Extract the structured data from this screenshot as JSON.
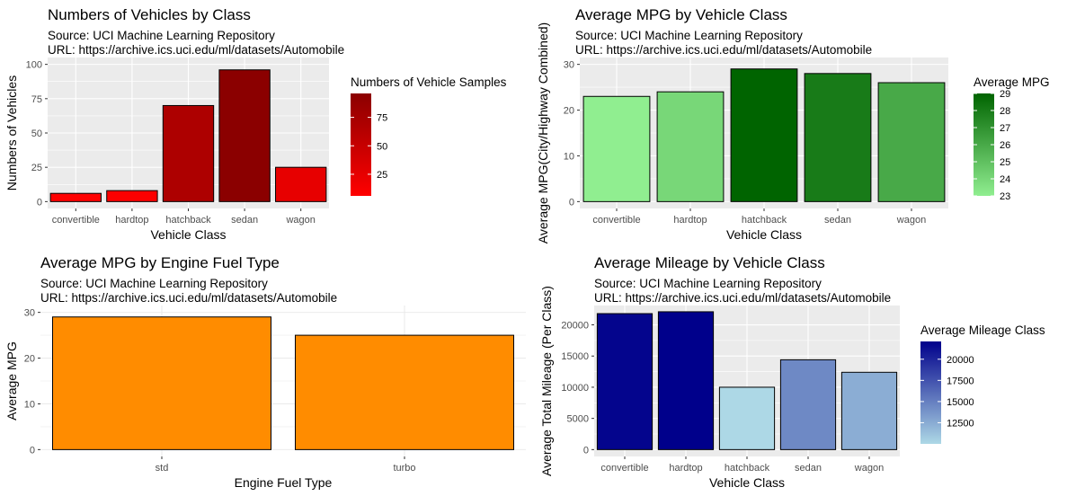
{
  "chart_data": [
    {
      "type": "bar",
      "title": "Numbers of Vehicles by Class",
      "subtitle": [
        "Source: UCI Machine Learning Repository",
        " URL: https://archive.ics.uci.edu/ml/datasets/Automobile"
      ],
      "xlabel": "Vehicle Class",
      "ylabel": "Numbers of Vehicles",
      "categories": [
        "convertible",
        "hardtop",
        "hatchback",
        "sedan",
        "wagon"
      ],
      "values": [
        6,
        8,
        70,
        96,
        25
      ],
      "ylim": [
        0,
        100
      ],
      "yticks": [
        0,
        25,
        50,
        75,
        100
      ],
      "grid": true,
      "legend": {
        "title": "Numbers of Vehicle Samples",
        "position": "right",
        "ticks": [
          25,
          50,
          75
        ],
        "range": [
          6,
          96
        ],
        "colors": [
          "#ff0000",
          "#8b0000"
        ]
      }
    },
    {
      "type": "bar",
      "title": "Average MPG by Vehicle Class",
      "subtitle": [
        "Source: UCI Machine Learning Repository",
        " URL: https://archive.ics.uci.edu/ml/datasets/Automobile"
      ],
      "xlabel": "Vehicle Class",
      "ylabel": "Average MPG(City/Highway Combined)",
      "categories": [
        "convertible",
        "hardtop",
        "hatchback",
        "sedan",
        "wagon"
      ],
      "values": [
        23,
        24,
        29,
        28,
        26
      ],
      "ylim": [
        0,
        30
      ],
      "yticks": [
        0,
        10,
        20,
        30
      ],
      "grid": true,
      "legend": {
        "title": "Average MPG",
        "position": "right",
        "ticks": [
          23,
          24,
          25,
          26,
          27,
          28,
          29
        ],
        "range": [
          23,
          29
        ],
        "colors": [
          "#90ee90",
          "#006400"
        ]
      }
    },
    {
      "type": "bar",
      "title": "Average MPG by Engine Fuel Type",
      "subtitle": [
        "Source: UCI Machine Learning Repository",
        " URL: https://archive.ics.uci.edu/ml/datasets/Automobile"
      ],
      "xlabel": "Engine Fuel Type",
      "ylabel": "Average MPG",
      "categories": [
        "std",
        "turbo"
      ],
      "values": [
        29,
        25
      ],
      "ylim": [
        0,
        30
      ],
      "yticks": [
        0,
        10,
        20,
        30
      ],
      "grid": true,
      "bar_color": "#ff8c00"
    },
    {
      "type": "bar",
      "title": "Average Mileage by Vehicle Class",
      "subtitle": [
        "Source: UCI Machine Learning Repository",
        " URL: https://archive.ics.uci.edu/ml/datasets/Automobile"
      ],
      "xlabel": "Vehicle Class",
      "ylabel": "Average Total Mileage (Per Class)",
      "categories": [
        "convertible",
        "hardtop",
        "hatchback",
        "sedan",
        "wagon"
      ],
      "values": [
        21800,
        22100,
        10000,
        14400,
        12400
      ],
      "ylim": [
        0,
        22000
      ],
      "yticks": [
        0,
        5000,
        10000,
        15000,
        20000
      ],
      "grid": true,
      "legend": {
        "title": "Average Mileage Class",
        "position": "right",
        "ticks": [
          12500,
          15000,
          17500,
          20000
        ],
        "range": [
          10000,
          22100
        ],
        "colors": [
          "#add8e6",
          "#00008b"
        ]
      }
    }
  ]
}
